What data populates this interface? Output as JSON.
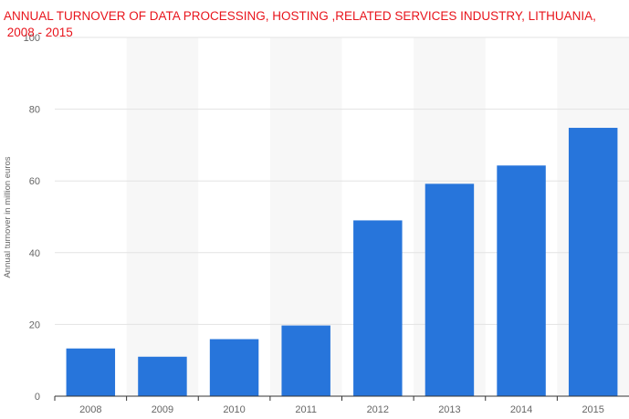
{
  "chart_data": {
    "type": "bar",
    "title_lines": [
      "ANNUAL TURNOVER OF DATA PROCESSING, HOSTING ,RELATED SERVICES INDUSTRY, LITHUANIA,",
      " 2008 - 2015"
    ],
    "xlabel": "",
    "ylabel": "Annual turnover in million euros",
    "categories": [
      "2008",
      "2009",
      "2010",
      "2011",
      "2012",
      "2013",
      "2014",
      "2015"
    ],
    "values": [
      13.3,
      11,
      15.9,
      19.7,
      49,
      59.2,
      64.3,
      74.8
    ],
    "ylim": [
      0,
      100
    ],
    "yticks": [
      "0",
      "20",
      "40",
      "60",
      "80",
      "100"
    ],
    "grid": true,
    "legend": "none"
  },
  "colors": {
    "bar": "#2775db",
    "title": "#e8141c",
    "band": "#f7f7f7",
    "grid": "#e3e3e3",
    "axis": "#333333",
    "text": "#666666"
  }
}
